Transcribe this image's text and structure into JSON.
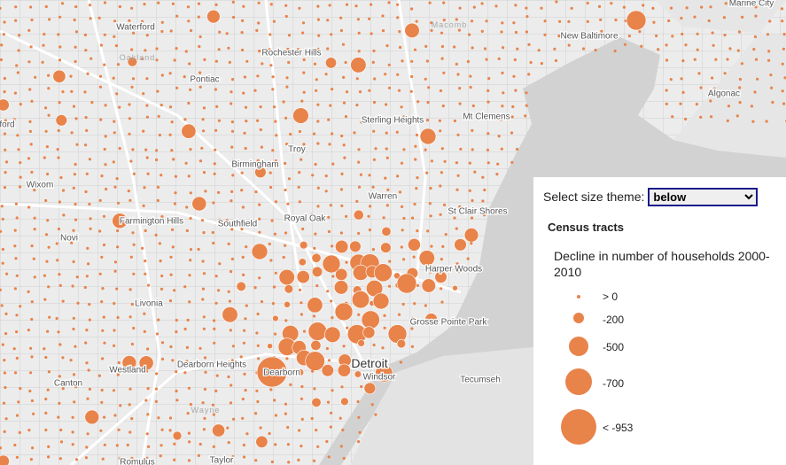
{
  "panel": {
    "select_label": "Select size theme:",
    "select_value": "below",
    "layer_title": "Census tracts",
    "field_title": "Decline in number of households 2000-2010",
    "legend": [
      "> 0",
      "-200",
      "-500",
      "-700",
      "< -953"
    ]
  },
  "places": [
    "Marine City",
    "New Baltimore",
    "Macomb",
    "Waterford",
    "Oakland",
    "Rochester Hills",
    "Pontiac",
    "Algonac",
    "ford",
    "Sterling Heights",
    "Mt Clemens",
    "Troy",
    "Birmingham",
    "Wixom",
    "Warren",
    "Farmington Hills",
    "Southfield",
    "Royal Oak",
    "St Clair Shores",
    "Novi",
    "Harper Woods",
    "Livonia",
    "Grosse Pointe Park",
    "Westland",
    "Dearborn Heights",
    "Dearborn",
    "Detroit",
    "Windsor",
    "Tecumseh",
    "Canton",
    "Wayne",
    "Taylor",
    "Romulus"
  ]
}
